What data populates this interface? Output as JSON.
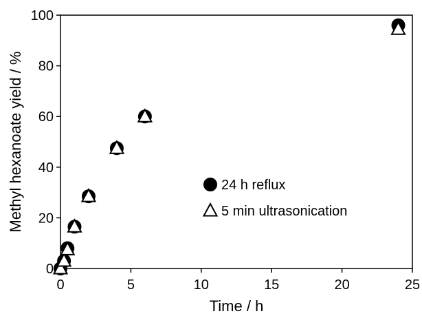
{
  "chart_data": {
    "type": "scatter",
    "xlabel": "Time / h",
    "ylabel": "Methyl hexanoate yield / %",
    "xlim": [
      0,
      25
    ],
    "ylim": [
      0,
      100
    ],
    "xticks": [
      0,
      5,
      10,
      15,
      20,
      25
    ],
    "yticks": [
      0,
      20,
      40,
      60,
      80,
      100
    ],
    "grid": false,
    "legend_position": "center-right",
    "series": [
      {
        "name": "24 h reflux",
        "marker": "filled-circle",
        "color": "#000000",
        "points": [
          {
            "x": 0,
            "y": 0
          },
          {
            "x": 0.25,
            "y": 3
          },
          {
            "x": 0.5,
            "y": 8
          },
          {
            "x": 1,
            "y": 16.5
          },
          {
            "x": 2,
            "y": 28.5
          },
          {
            "x": 4,
            "y": 47.5
          },
          {
            "x": 6,
            "y": 60
          },
          {
            "x": 24,
            "y": 96
          }
        ]
      },
      {
        "name": "5 min ultrasonication",
        "marker": "open-triangle",
        "color": "#000000",
        "points": [
          {
            "x": 0,
            "y": 0
          },
          {
            "x": 0.25,
            "y": 3
          },
          {
            "x": 0.5,
            "y": 7.5
          },
          {
            "x": 1,
            "y": 16.5
          },
          {
            "x": 2,
            "y": 28.5
          },
          {
            "x": 4,
            "y": 47.5
          },
          {
            "x": 6,
            "y": 60
          },
          {
            "x": 24,
            "y": 94.5
          }
        ]
      }
    ]
  }
}
